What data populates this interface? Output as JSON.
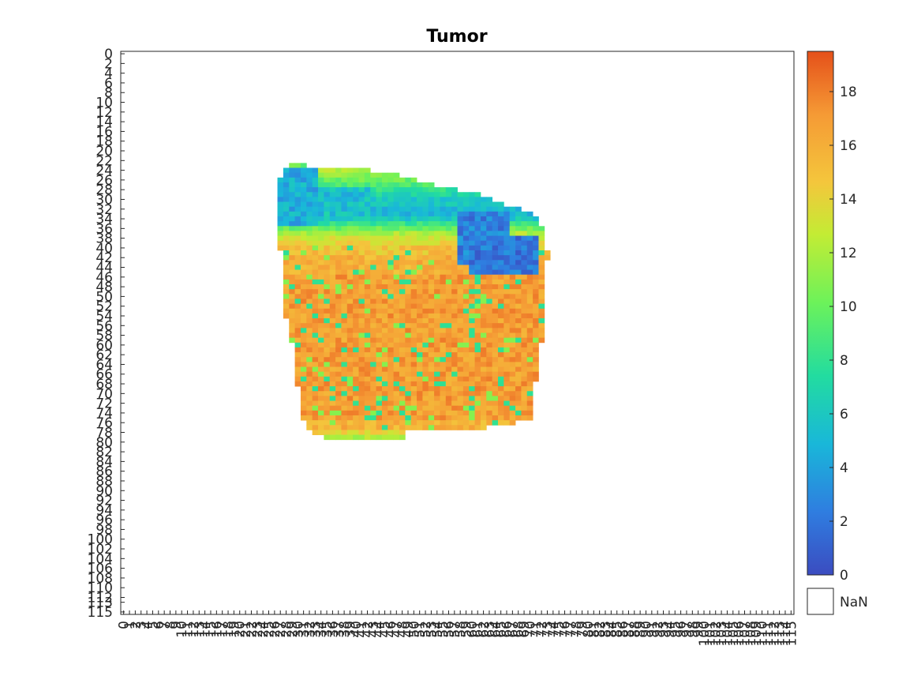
{
  "chart_data": {
    "type": "heatmap",
    "title": "Tumor",
    "xlabel": "",
    "ylabel": "",
    "x_range": [
      0,
      115
    ],
    "y_range": [
      0,
      115
    ],
    "x_ticks": [
      0,
      1,
      2,
      3,
      4,
      5,
      6,
      7,
      8,
      9,
      10,
      11,
      12,
      13,
      14,
      15,
      16,
      17,
      18,
      19,
      20,
      21,
      22,
      23,
      24,
      25,
      26,
      27,
      28,
      29,
      30,
      31,
      32,
      33,
      34,
      35,
      36,
      37,
      38,
      39,
      40,
      41,
      42,
      43,
      44,
      45,
      46,
      47,
      48,
      49,
      50,
      51,
      52,
      53,
      54,
      55,
      56,
      57,
      58,
      59,
      60,
      61,
      62,
      63,
      64,
      65,
      66,
      67,
      68,
      69,
      70,
      71,
      72,
      73,
      74,
      75,
      76,
      77,
      78,
      79,
      80,
      81,
      82,
      83,
      84,
      85,
      86,
      87,
      88,
      89,
      90,
      91,
      92,
      93,
      94,
      95,
      96,
      97,
      98,
      99,
      100,
      101,
      102,
      103,
      104,
      105,
      106,
      107,
      108,
      109,
      110,
      111,
      112,
      113,
      114,
      115
    ],
    "y_ticks": [
      0,
      2,
      4,
      6,
      8,
      10,
      12,
      14,
      16,
      18,
      20,
      22,
      24,
      26,
      28,
      30,
      32,
      34,
      36,
      38,
      40,
      42,
      44,
      46,
      48,
      50,
      52,
      54,
      56,
      58,
      60,
      62,
      64,
      66,
      68,
      70,
      72,
      74,
      76,
      78,
      80,
      82,
      84,
      86,
      88,
      90,
      92,
      94,
      96,
      98,
      100,
      102,
      104,
      106,
      108,
      110,
      112,
      113,
      115
    ],
    "colorbar": {
      "min": 0,
      "max": 19.5,
      "ticks": [
        0,
        2,
        4,
        6,
        8,
        10,
        12,
        14,
        16,
        18
      ],
      "colormap": "turbo-like",
      "nan_label": "NaN",
      "nan_color": "#ffffff"
    },
    "region": {
      "description_values": "NaN outside tumor region; interior values mostly 14-19 with low values (0-6) along upper edges",
      "rows": [
        {
          "y": 23,
          "x_start": 29,
          "x_end": 31,
          "value": 10
        },
        {
          "y": 24,
          "x_start": 28,
          "x_end": 42,
          "value": 12
        },
        {
          "y": 25,
          "x_start": 28,
          "x_end": 47,
          "value": 11
        },
        {
          "y": 26,
          "x_start": 27,
          "x_end": 50,
          "value": 10
        },
        {
          "y": 27,
          "x_start": 27,
          "x_end": 53,
          "value": 9
        },
        {
          "y": 28,
          "x_start": 27,
          "x_end": 57,
          "value": 8
        },
        {
          "y": 29,
          "x_start": 27,
          "x_end": 61,
          "value": 7
        },
        {
          "y": 30,
          "x_start": 27,
          "x_end": 63,
          "value": 6
        },
        {
          "y": 31,
          "x_start": 27,
          "x_end": 65,
          "value": 6
        },
        {
          "y": 32,
          "x_start": 27,
          "x_end": 68,
          "value": 5
        },
        {
          "y": 33,
          "x_start": 27,
          "x_end": 70,
          "value": 5
        },
        {
          "y": 34,
          "x_start": 27,
          "x_end": 71,
          "value": 6
        },
        {
          "y": 35,
          "x_start": 27,
          "x_end": 71,
          "value": 8
        },
        {
          "y": 36,
          "x_start": 27,
          "x_end": 72,
          "value": 10
        },
        {
          "y": 37,
          "x_start": 27,
          "x_end": 72,
          "value": 12
        },
        {
          "y": 38,
          "x_start": 27,
          "x_end": 72,
          "value": 13
        },
        {
          "y": 39,
          "x_start": 27,
          "x_end": 72,
          "value": 14
        },
        {
          "y": 40,
          "x_start": 27,
          "x_end": 72,
          "value": 15
        },
        {
          "y": 41,
          "x_start": 28,
          "x_end": 73,
          "value": 15
        },
        {
          "y": 42,
          "x_start": 28,
          "x_end": 73,
          "value": 16
        },
        {
          "y": 43,
          "x_start": 28,
          "x_end": 72,
          "value": 16
        },
        {
          "y": 44,
          "x_start": 28,
          "x_end": 72,
          "value": 16
        },
        {
          "y": 45,
          "x_start": 28,
          "x_end": 72,
          "value": 16
        },
        {
          "y": 46,
          "x_start": 28,
          "x_end": 72,
          "value": 17
        },
        {
          "y": 47,
          "x_start": 28,
          "x_end": 72,
          "value": 17
        },
        {
          "y": 48,
          "x_start": 28,
          "x_end": 72,
          "value": 17
        },
        {
          "y": 49,
          "x_start": 28,
          "x_end": 72,
          "value": 17
        },
        {
          "y": 50,
          "x_start": 28,
          "x_end": 72,
          "value": 17
        },
        {
          "y": 51,
          "x_start": 28,
          "x_end": 72,
          "value": 17
        },
        {
          "y": 52,
          "x_start": 28,
          "x_end": 72,
          "value": 17
        },
        {
          "y": 53,
          "x_start": 28,
          "x_end": 72,
          "value": 17
        },
        {
          "y": 54,
          "x_start": 28,
          "x_end": 72,
          "value": 17
        },
        {
          "y": 55,
          "x_start": 29,
          "x_end": 72,
          "value": 17
        },
        {
          "y": 56,
          "x_start": 29,
          "x_end": 72,
          "value": 17
        },
        {
          "y": 57,
          "x_start": 29,
          "x_end": 72,
          "value": 17
        },
        {
          "y": 58,
          "x_start": 29,
          "x_end": 72,
          "value": 17
        },
        {
          "y": 59,
          "x_start": 29,
          "x_end": 72,
          "value": 17
        },
        {
          "y": 60,
          "x_start": 30,
          "x_end": 71,
          "value": 17
        },
        {
          "y": 61,
          "x_start": 30,
          "x_end": 71,
          "value": 17
        },
        {
          "y": 62,
          "x_start": 30,
          "x_end": 71,
          "value": 17
        },
        {
          "y": 63,
          "x_start": 30,
          "x_end": 71,
          "value": 17
        },
        {
          "y": 64,
          "x_start": 30,
          "x_end": 71,
          "value": 17
        },
        {
          "y": 65,
          "x_start": 30,
          "x_end": 71,
          "value": 17
        },
        {
          "y": 66,
          "x_start": 30,
          "x_end": 71,
          "value": 17
        },
        {
          "y": 67,
          "x_start": 30,
          "x_end": 71,
          "value": 17
        },
        {
          "y": 68,
          "x_start": 30,
          "x_end": 70,
          "value": 17
        },
        {
          "y": 69,
          "x_start": 31,
          "x_end": 70,
          "value": 17
        },
        {
          "y": 70,
          "x_start": 31,
          "x_end": 70,
          "value": 17
        },
        {
          "y": 71,
          "x_start": 31,
          "x_end": 70,
          "value": 17
        },
        {
          "y": 72,
          "x_start": 31,
          "x_end": 70,
          "value": 17
        },
        {
          "y": 73,
          "x_start": 31,
          "x_end": 70,
          "value": 17
        },
        {
          "y": 74,
          "x_start": 31,
          "x_end": 70,
          "value": 17
        },
        {
          "y": 75,
          "x_start": 31,
          "x_end": 70,
          "value": 17
        },
        {
          "y": 76,
          "x_start": 32,
          "x_end": 67,
          "value": 16
        },
        {
          "y": 77,
          "x_start": 32,
          "x_end": 62,
          "value": 16
        },
        {
          "y": 78,
          "x_start": 33,
          "x_end": 48,
          "value": 14
        },
        {
          "y": 79,
          "x_start": 35,
          "x_end": 48,
          "value": 12
        }
      ],
      "low_value_zones": [
        {
          "x_range": [
            27,
            33
          ],
          "y_range": [
            24,
            35
          ],
          "value": 3
        },
        {
          "x_range": [
            34,
            42
          ],
          "y_range": [
            28,
            33
          ],
          "value": 4
        },
        {
          "x_range": [
            58,
            66
          ],
          "y_range": [
            33,
            43
          ],
          "value": 1
        },
        {
          "x_range": [
            60,
            71
          ],
          "y_range": [
            38,
            45
          ],
          "value": 0.5
        }
      ]
    }
  }
}
